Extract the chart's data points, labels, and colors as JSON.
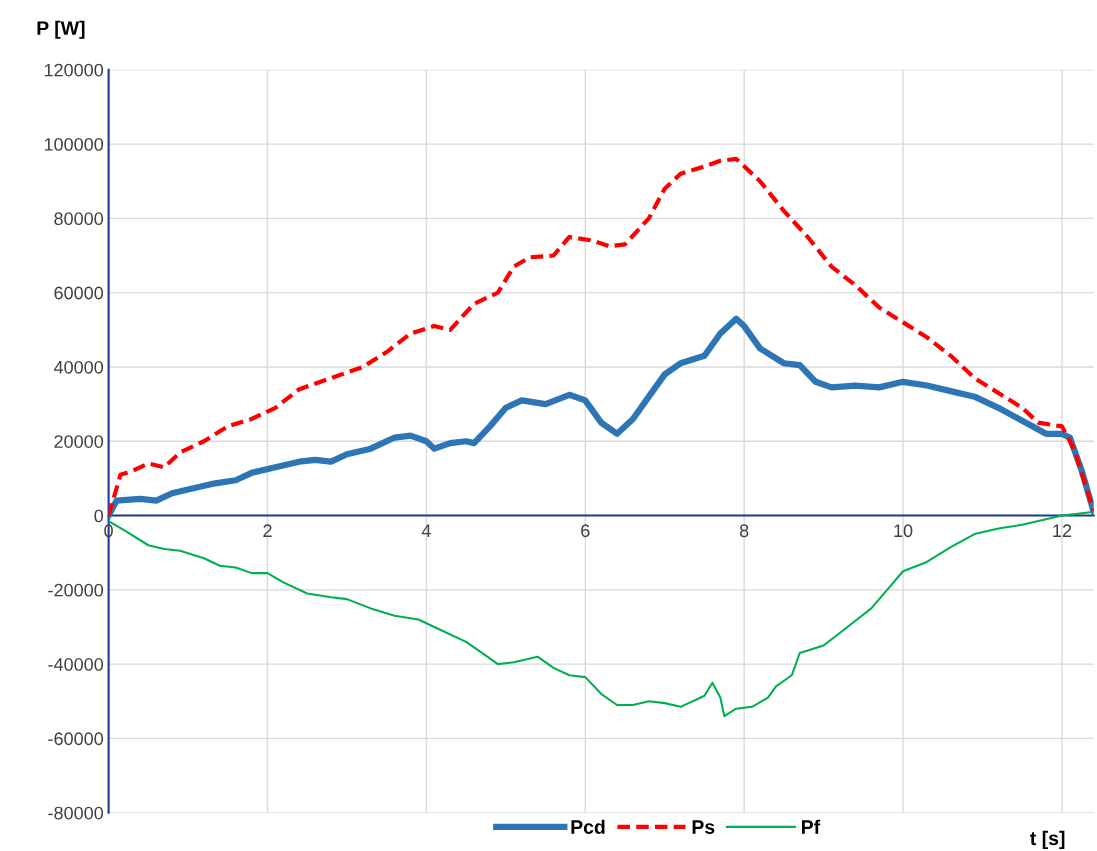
{
  "chart_data": {
    "type": "line",
    "xlabel": "t [s]",
    "ylabel": "P [W]",
    "xlim": [
      0,
      12.4
    ],
    "ylim": [
      -80000,
      120000
    ],
    "xticks": [
      0,
      2,
      4,
      6,
      8,
      10,
      12
    ],
    "yticks": [
      -80000,
      -60000,
      -40000,
      -20000,
      0,
      20000,
      40000,
      60000,
      80000,
      100000,
      120000
    ],
    "grid": true,
    "legend": "bottom",
    "marker": "none",
    "series": [
      {
        "name": "Pcd",
        "color": "#2e75b6",
        "line_style": "solid",
        "x": [
          0,
          0.1,
          0.4,
          0.6,
          0.8,
          1.0,
          1.3,
          1.6,
          1.8,
          2.1,
          2.4,
          2.6,
          2.8,
          3.0,
          3.3,
          3.6,
          3.8,
          4.0,
          4.1,
          4.3,
          4.5,
          4.6,
          4.8,
          5.0,
          5.2,
          5.5,
          5.8,
          6.0,
          6.2,
          6.4,
          6.6,
          6.8,
          7.0,
          7.2,
          7.5,
          7.7,
          7.9,
          8.0,
          8.2,
          8.5,
          8.7,
          8.9,
          9.1,
          9.4,
          9.7,
          10.0,
          10.3,
          10.6,
          10.9,
          11.2,
          11.5,
          11.8,
          12.0,
          12.1,
          12.25,
          12.4
        ],
        "values": [
          0,
          4000,
          4500,
          4000,
          6000,
          7000,
          8500,
          9500,
          11500,
          13000,
          14500,
          15000,
          14500,
          16500,
          18000,
          21000,
          21500,
          20000,
          18000,
          19500,
          20000,
          19500,
          24000,
          29000,
          31000,
          30000,
          32500,
          31000,
          25000,
          22000,
          26000,
          32000,
          38000,
          41000,
          43000,
          49000,
          53000,
          51000,
          45000,
          41000,
          40500,
          36000,
          34500,
          35000,
          34500,
          36000,
          35000,
          33500,
          32000,
          29000,
          25500,
          22000,
          22000,
          21000,
          12000,
          1000
        ]
      },
      {
        "name": "Ps",
        "color": "#ff0000",
        "line_style": "dashed",
        "x": [
          0,
          0.15,
          0.3,
          0.5,
          0.7,
          0.9,
          1.2,
          1.5,
          1.8,
          2.1,
          2.4,
          2.8,
          3.2,
          3.5,
          3.8,
          4.1,
          4.3,
          4.6,
          4.9,
          5.1,
          5.3,
          5.6,
          5.8,
          6.1,
          6.3,
          6.5,
          6.8,
          7.0,
          7.2,
          7.5,
          7.7,
          7.9,
          8.2,
          8.5,
          8.8,
          9.1,
          9.4,
          9.7,
          10.0,
          10.3,
          10.6,
          10.9,
          11.2,
          11.5,
          11.7,
          12.0,
          12.15,
          12.3,
          12.4
        ],
        "values": [
          0,
          11000,
          12000,
          14000,
          13000,
          17000,
          20000,
          24000,
          26000,
          29000,
          34000,
          37000,
          40000,
          44000,
          49000,
          51000,
          50000,
          57000,
          60000,
          67000,
          69500,
          70000,
          75000,
          74000,
          72500,
          73000,
          80000,
          88000,
          92000,
          94000,
          95500,
          96000,
          90000,
          82000,
          75000,
          67000,
          62000,
          56000,
          52000,
          48000,
          43000,
          37000,
          33000,
          29000,
          25000,
          24000,
          18000,
          8000,
          1000
        ]
      },
      {
        "name": "Pf",
        "color": "#00b050",
        "line_style": "solid",
        "x": [
          0,
          0.2,
          0.5,
          0.7,
          0.9,
          1.2,
          1.4,
          1.6,
          1.8,
          2.0,
          2.2,
          2.5,
          2.8,
          3.0,
          3.3,
          3.6,
          3.9,
          4.2,
          4.5,
          4.7,
          4.9,
          5.1,
          5.4,
          5.6,
          5.8,
          6.0,
          6.2,
          6.4,
          6.6,
          6.8,
          7.0,
          7.2,
          7.5,
          7.6,
          7.7,
          7.75,
          7.9,
          8.1,
          8.3,
          8.4,
          8.6,
          8.7,
          9.0,
          9.3,
          9.6,
          9.8,
          10.0,
          10.3,
          10.6,
          10.9,
          11.2,
          11.5,
          11.8,
          12.0,
          12.2,
          12.4
        ],
        "values": [
          -1500,
          -4000,
          -8000,
          -9000,
          -9500,
          -11500,
          -13500,
          -14000,
          -15500,
          -15500,
          -18000,
          -21000,
          -22000,
          -22500,
          -25000,
          -27000,
          -28000,
          -31000,
          -34000,
          -37000,
          -40000,
          -39500,
          -38000,
          -41000,
          -43000,
          -43500,
          -48000,
          -51000,
          -51000,
          -50000,
          -50500,
          -51500,
          -48500,
          -45000,
          -49000,
          -54000,
          -52000,
          -51500,
          -49000,
          -46000,
          -43000,
          -37000,
          -35000,
          -30000,
          -25000,
          -20000,
          -15000,
          -12500,
          -8500,
          -5000,
          -3500,
          -2500,
          -1000,
          0,
          500,
          1000
        ]
      }
    ]
  }
}
